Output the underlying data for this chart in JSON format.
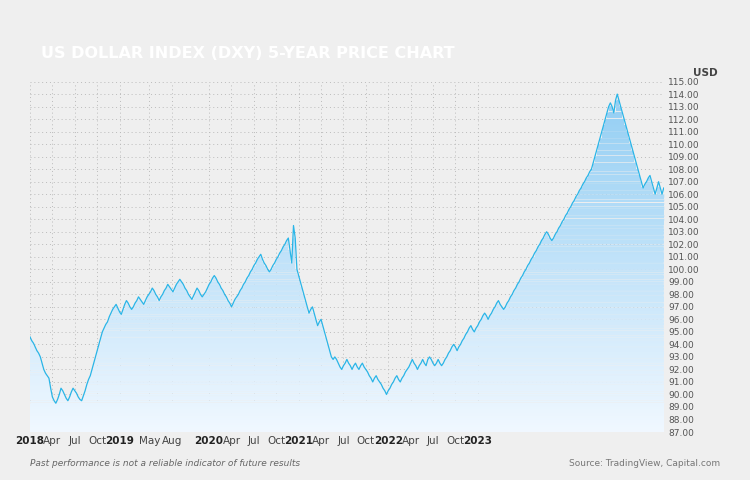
{
  "title": "US DOLLAR INDEX (DXY) 5-YEAR PRICE CHART",
  "title_bg_color": "#A67C5B",
  "title_text_color": "#FFFFFF",
  "ylabel": "USD",
  "background_color": "#EFEFEF",
  "line_color": "#29B5E8",
  "fill_color_top": "#7DD4F0",
  "fill_color_bottom": "#EAF6FC",
  "ylim": [
    87.0,
    115.0
  ],
  "yticks": [
    87.0,
    88.0,
    89.0,
    90.0,
    91.0,
    92.0,
    93.0,
    94.0,
    95.0,
    96.0,
    97.0,
    98.0,
    99.0,
    100.0,
    101.0,
    102.0,
    103.0,
    104.0,
    105.0,
    106.0,
    107.0,
    108.0,
    109.0,
    110.0,
    111.0,
    112.0,
    113.0,
    114.0,
    115.0
  ],
  "footer_left": "Past performance is not a reliable indicator of future results",
  "footer_right": "Source: TradingView, Capital.com",
  "x_tick_labels": [
    "2018",
    "Apr",
    "Jul",
    "Oct",
    "2019",
    "May",
    "Aug",
    "2020",
    "Apr",
    "Jul",
    "Oct",
    "2021",
    "Apr",
    "Jul",
    "Oct",
    "2022",
    "Apr",
    "Jul",
    "Oct",
    "2023"
  ],
  "dxy_weekly": [
    94.6,
    94.3,
    94.1,
    93.8,
    93.5,
    93.3,
    93.0,
    92.5,
    92.0,
    91.7,
    91.5,
    91.3,
    90.5,
    89.8,
    89.5,
    89.3,
    89.6,
    90.0,
    90.5,
    90.3,
    90.0,
    89.7,
    89.5,
    89.8,
    90.2,
    90.5,
    90.3,
    90.1,
    89.8,
    89.6,
    89.5,
    89.9,
    90.3,
    90.8,
    91.2,
    91.5,
    92.0,
    92.5,
    93.0,
    93.5,
    94.0,
    94.5,
    95.0,
    95.3,
    95.6,
    95.8,
    96.2,
    96.5,
    96.8,
    97.0,
    97.2,
    96.9,
    96.6,
    96.4,
    96.8,
    97.2,
    97.5,
    97.3,
    97.0,
    96.8,
    97.0,
    97.3,
    97.5,
    97.8,
    97.6,
    97.4,
    97.2,
    97.5,
    97.8,
    98.0,
    98.2,
    98.5,
    98.3,
    98.0,
    97.8,
    97.5,
    97.8,
    98.0,
    98.3,
    98.5,
    98.8,
    98.6,
    98.4,
    98.2,
    98.5,
    98.8,
    99.0,
    99.2,
    99.0,
    98.8,
    98.5,
    98.3,
    98.0,
    97.8,
    97.6,
    97.9,
    98.2,
    98.5,
    98.3,
    98.0,
    97.8,
    98.0,
    98.2,
    98.5,
    98.8,
    99.0,
    99.3,
    99.5,
    99.3,
    99.0,
    98.8,
    98.5,
    98.3,
    98.0,
    97.8,
    97.5,
    97.3,
    97.0,
    97.3,
    97.6,
    97.8,
    98.0,
    98.3,
    98.5,
    98.8,
    99.0,
    99.3,
    99.5,
    99.8,
    100.0,
    100.3,
    100.5,
    100.8,
    101.0,
    101.2,
    100.8,
    100.5,
    100.3,
    100.0,
    99.8,
    100.0,
    100.3,
    100.5,
    100.8,
    101.0,
    101.3,
    101.5,
    101.8,
    102.0,
    102.3,
    102.5,
    101.5,
    100.5,
    103.5,
    102.5,
    100.0,
    99.5,
    99.0,
    98.5,
    98.0,
    97.5,
    97.0,
    96.5,
    96.8,
    97.0,
    96.5,
    96.0,
    95.5,
    95.8,
    96.0,
    95.5,
    95.0,
    94.5,
    94.0,
    93.5,
    93.0,
    92.8,
    93.0,
    92.8,
    92.5,
    92.2,
    92.0,
    92.3,
    92.5,
    92.8,
    92.5,
    92.3,
    92.0,
    92.3,
    92.5,
    92.2,
    92.0,
    92.3,
    92.5,
    92.2,
    92.0,
    91.8,
    91.5,
    91.3,
    91.0,
    91.3,
    91.5,
    91.2,
    91.0,
    90.8,
    90.5,
    90.3,
    90.0,
    90.3,
    90.5,
    90.8,
    91.0,
    91.3,
    91.5,
    91.2,
    91.0,
    91.3,
    91.5,
    91.8,
    92.0,
    92.2,
    92.5,
    92.8,
    92.5,
    92.3,
    92.0,
    92.3,
    92.5,
    92.8,
    92.5,
    92.3,
    92.8,
    93.0,
    92.8,
    92.5,
    92.3,
    92.5,
    92.8,
    92.5,
    92.3,
    92.5,
    92.8,
    93.0,
    93.3,
    93.5,
    93.8,
    94.0,
    93.8,
    93.5,
    93.8,
    94.0,
    94.3,
    94.5,
    94.8,
    95.0,
    95.3,
    95.5,
    95.2,
    95.0,
    95.3,
    95.5,
    95.8,
    96.0,
    96.3,
    96.5,
    96.3,
    96.0,
    96.3,
    96.5,
    96.8,
    97.0,
    97.3,
    97.5,
    97.2,
    97.0,
    96.8,
    97.0,
    97.3,
    97.5,
    97.8,
    98.0,
    98.3,
    98.5,
    98.8,
    99.0,
    99.3,
    99.5,
    99.8,
    100.0,
    100.3,
    100.5,
    100.8,
    101.0,
    101.3,
    101.5,
    101.8,
    102.0,
    102.3,
    102.5,
    102.8,
    103.0,
    102.8,
    102.5,
    102.3,
    102.5,
    102.8,
    103.0,
    103.3,
    103.5,
    103.8,
    104.0,
    104.3,
    104.5,
    104.8,
    105.0,
    105.3,
    105.5,
    105.8,
    106.0,
    106.3,
    106.5,
    106.8,
    107.0,
    107.3,
    107.5,
    107.8,
    108.0,
    108.5,
    109.0,
    109.5,
    110.0,
    110.5,
    111.0,
    111.5,
    112.0,
    112.5,
    113.0,
    113.3,
    113.0,
    112.5,
    113.5,
    114.0,
    113.5,
    113.0,
    112.5,
    112.0,
    111.5,
    111.0,
    110.5,
    110.0,
    109.5,
    109.0,
    108.5,
    108.0,
    107.5,
    107.0,
    106.5,
    106.8,
    107.0,
    107.3,
    107.5,
    107.0,
    106.5,
    106.0,
    106.5,
    107.0,
    106.5,
    106.0,
    106.5
  ]
}
